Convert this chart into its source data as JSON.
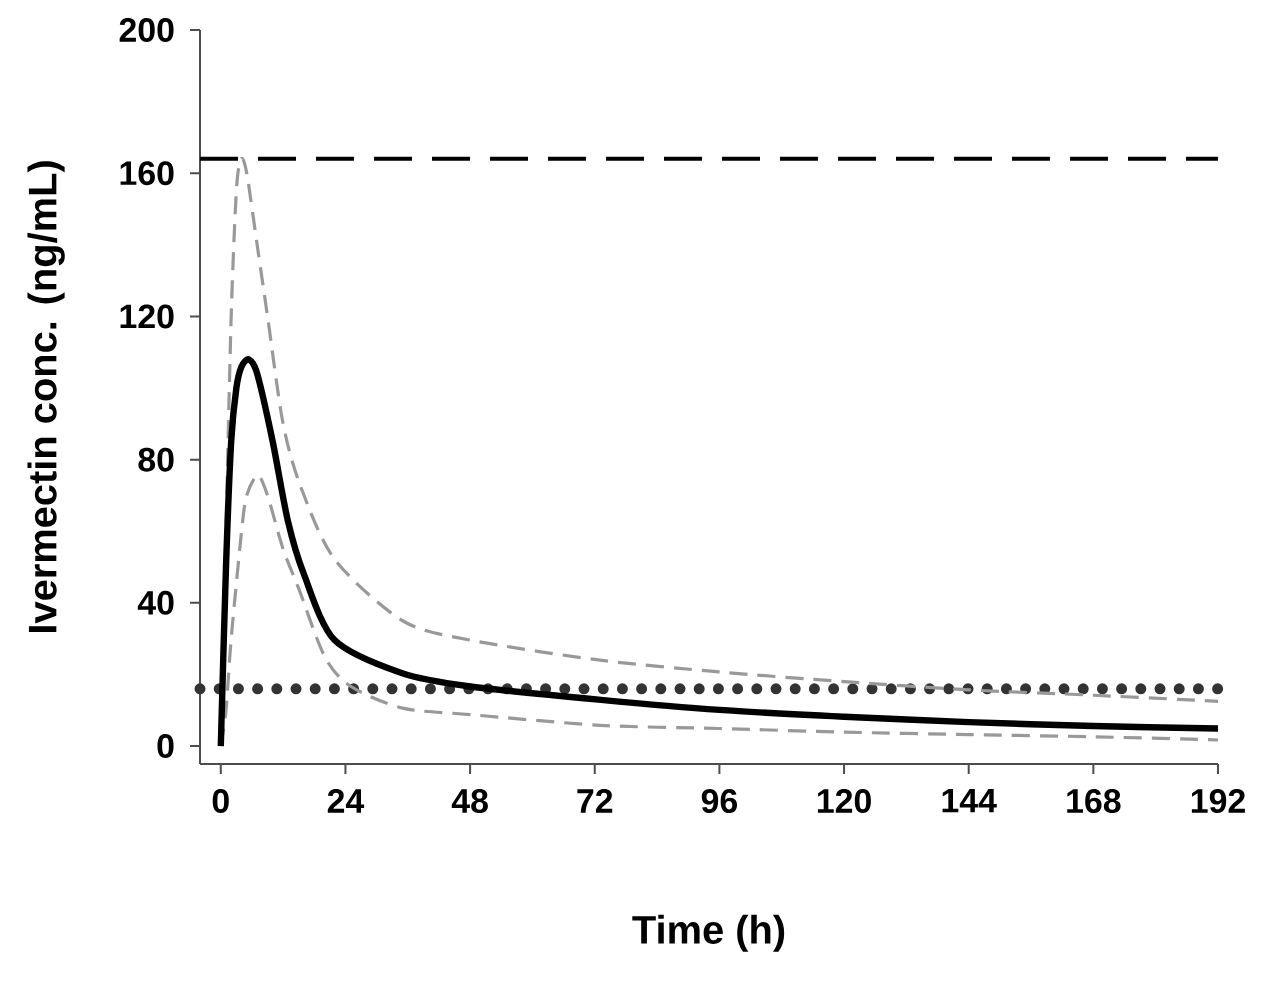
{
  "chart_data": {
    "type": "line",
    "xlabel": "Time (h)",
    "ylabel": "Ivermectin conc. (ng/mL)",
    "xlim": [
      -4,
      192
    ],
    "ylim": [
      -5,
      200
    ],
    "xticks": [
      0,
      24,
      48,
      72,
      96,
      120,
      144,
      168,
      192
    ],
    "yticks": [
      0,
      40,
      80,
      120,
      160,
      200
    ],
    "grid": false,
    "marker": "none",
    "series": [
      {
        "color": "#999999",
        "line_style": "dashed",
        "x": [
          0,
          1,
          2,
          3,
          3.9,
          5,
          7,
          9,
          12,
          15.5,
          22,
          35,
          48,
          73,
          96,
          120,
          144,
          168,
          192
        ],
        "values": [
          0,
          60,
          120,
          155,
          164,
          160,
          140,
          120,
          90,
          72,
          52,
          35,
          29.6,
          24,
          20.7,
          18,
          15.7,
          14.2,
          12.5
        ]
      },
      {
        "color": "#999999",
        "line_style": "dashed",
        "x": [
          0,
          1,
          2,
          4,
          5,
          7.1,
          9,
          12,
          15,
          20,
          25,
          35,
          48,
          73,
          96,
          120,
          144,
          168,
          192
        ],
        "values": [
          0,
          10,
          30,
          60,
          70,
          75.6,
          70,
          55,
          44,
          25,
          16.7,
          10.6,
          8.8,
          5.8,
          4.9,
          3.9,
          3.2,
          2.6,
          1.7
        ]
      },
      {
        "color": "#000000",
        "line_style": "solid",
        "x": [
          0,
          1,
          2,
          3,
          4,
          5.4,
          7,
          10,
          12.9,
          16,
          21.9,
          34.8,
          47.7,
          73.2,
          96,
          120,
          144,
          168,
          192
        ],
        "values": [
          0,
          50,
          85,
          100,
          106,
          108,
          104,
          85,
          63,
          48,
          29.6,
          20.4,
          16.7,
          12.9,
          10.1,
          8.2,
          6.7,
          5.6,
          4.9
        ]
      }
    ],
    "ref_lines": [
      {
        "axis": "y",
        "value": 164,
        "color": "#000000",
        "line_style": "dashed"
      },
      {
        "axis": "y",
        "value": 16,
        "color": "#333333",
        "line_style": "dotted"
      }
    ]
  }
}
